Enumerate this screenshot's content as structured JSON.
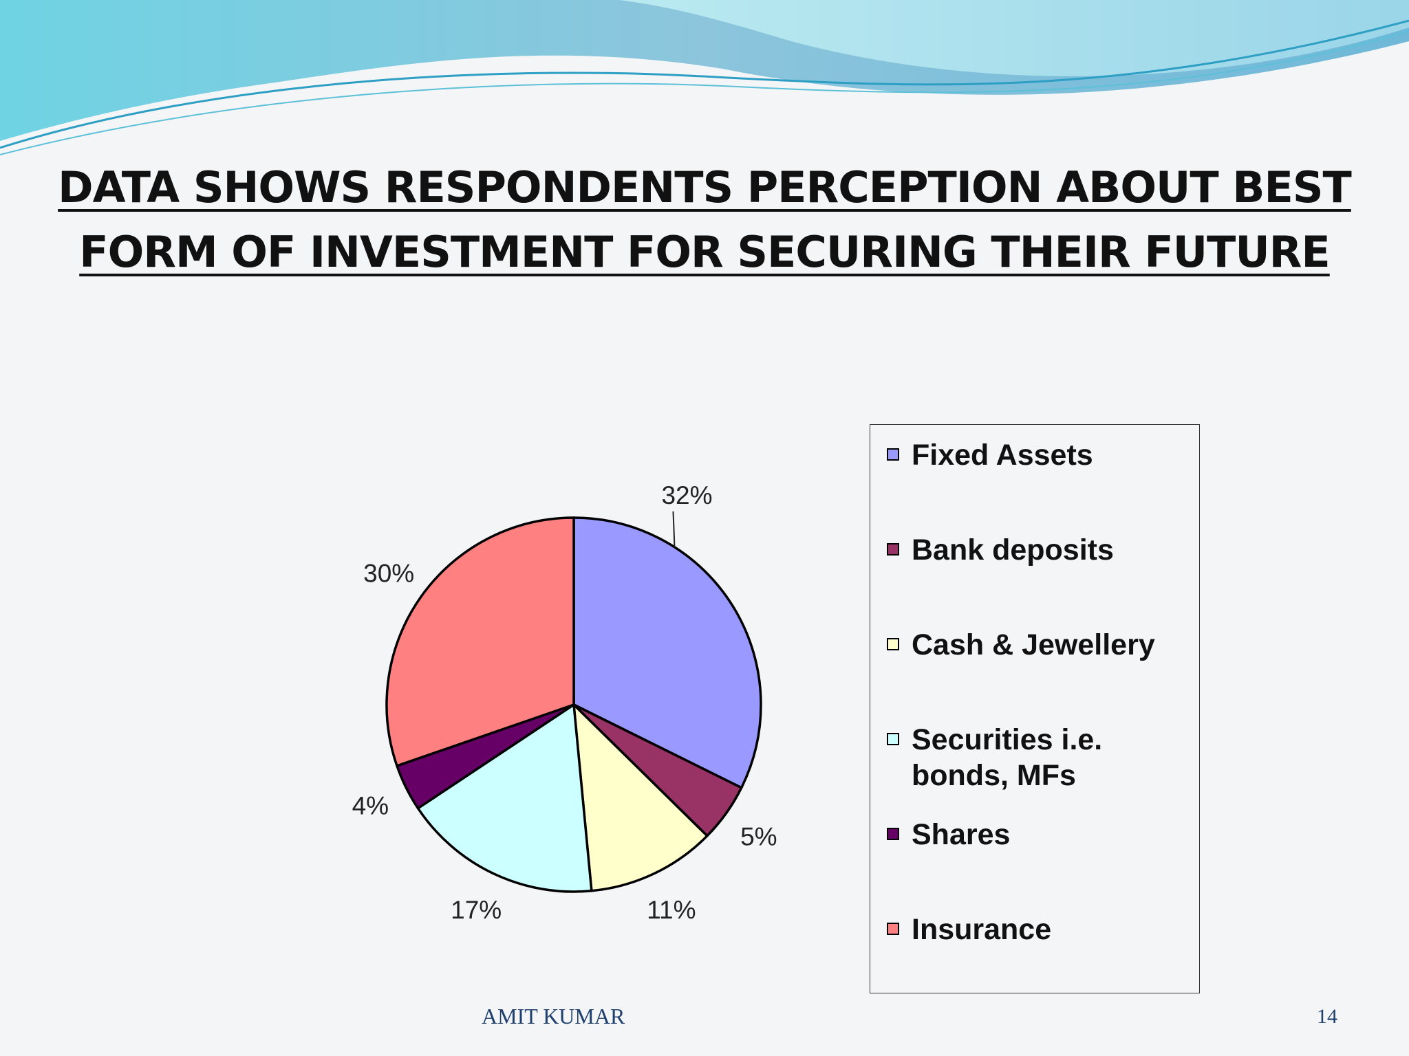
{
  "slide": {
    "title_line1": "DATA SHOWS RESPONDENTS PERCEPTION ABOUT BEST",
    "title_line2": "FORM OF INVESTMENT FOR SECURING THEIR FUTURE",
    "footer_author": "AMIT KUMAR",
    "page_number": "14"
  },
  "chart_data": {
    "type": "pie",
    "title": "DATA SHOWS RESPONDENTS PERCEPTION ABOUT BEST FORM OF INVESTMENT FOR SECURING THEIR FUTURE",
    "start_angle_deg": 0,
    "direction": "clockwise",
    "legend_position": "right",
    "slices": [
      {
        "label": "Fixed Assets",
        "value": 32,
        "display": "32%",
        "color": "#9999ff"
      },
      {
        "label": "Bank deposits",
        "value": 5,
        "display": "5%",
        "color": "#993366"
      },
      {
        "label": "Cash & Jewellery",
        "value": 11,
        "display": "11%",
        "color": "#ffffcc"
      },
      {
        "label": "Securities i.e. bonds, MFs",
        "value": 17,
        "display": "17%",
        "color": "#ccffff"
      },
      {
        "label": "Shares",
        "value": 4,
        "display": "4%",
        "color": "#660066"
      },
      {
        "label": "Insurance",
        "value": 30,
        "display": "30%",
        "color": "#ff8080"
      }
    ]
  }
}
